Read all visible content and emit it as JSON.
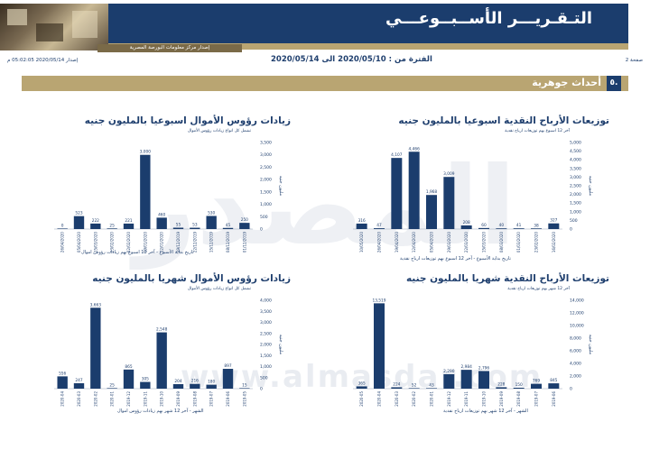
{
  "header": {
    "title": "التـقـريـــر الأســبــوعـــي",
    "subtitle": "إصدار مركز معلومات البورصة المصرية"
  },
  "meta": {
    "page": "صفحة 2",
    "period": "الفترة من : 2020/05/10 الى 2020/05/14",
    "issued": "إصدار 2020/05/14 05:02:05 م"
  },
  "section": {
    "number": "٥.",
    "title": "أحداث جوهرية"
  },
  "watermark": {
    "big": "المصدر",
    "url": "www.almasdar.com"
  },
  "colors": {
    "navy": "#1b3d6d",
    "gold": "#b9a572",
    "bar": "#1b3d6d"
  },
  "chart_data": [
    {
      "type": "bar",
      "title": "توزيعات الأرباح النقدية اسبوعيا بالمليون جنيه",
      "subtitle": "آخر 12 اسبوع بهم توزيعات ارباح نقدية",
      "xlabel": "تاريخ بداية الأسبوع - آخر 12 اسبوع بهم توزيعات ارباح نقدية",
      "ylabel": "مليون جنيه",
      "ylim": [
        0,
        5000
      ],
      "yticks": [
        0,
        500,
        1000,
        1500,
        2000,
        2500,
        3000,
        3500,
        4000,
        4500,
        5000
      ],
      "categories": [
        "10/05/2020",
        "26/04/2020",
        "19/04/2020",
        "12/04/2020",
        "05/04/2020",
        "29/03/2020",
        "22/03/2020",
        "15/03/2020",
        "08/03/2020",
        "01/03/2020",
        "23/02/2020",
        "16/02/2020"
      ],
      "values": [
        316,
        47,
        4107,
        4466,
        1968,
        3009,
        208,
        60,
        40,
        41,
        38,
        327
      ],
      "grid": false,
      "legend": "none"
    },
    {
      "type": "bar",
      "title": "زيادات رؤوس الأموال اسبوعيا بالمليون جنيه",
      "subtitle": "تشمل كل انواع زيادات رؤوس الأموال",
      "xlabel": "تاريخ بداية الأسبوع - آخر 12 اسبوع بهم زيادات رؤوس اموال",
      "ylabel": "مليون جنيه",
      "ylim": [
        0,
        3500
      ],
      "yticks": [
        0,
        500,
        1000,
        1500,
        2000,
        2500,
        3000,
        3500
      ],
      "categories": [
        "26/04/2020",
        "05/04/2020",
        "15/03/2020",
        "23/02/2020",
        "02/02/2020",
        "19/01/2020",
        "12/01/2020",
        "29/12/2019",
        "22/12/2019",
        "15/12/2019",
        "08/12/2019",
        "01/12/2019"
      ],
      "values": [
        0,
        523,
        222,
        25,
        221,
        3000,
        460,
        55,
        53,
        530,
        45,
        250
      ],
      "grid": false,
      "legend": "none"
    },
    {
      "type": "bar",
      "title": "توزيعات الأرباح النقدية شهريا بالمليون جنيه",
      "subtitle": "آخر 12 شهر بهم توزيعات ارباح نقدية",
      "xlabel": "الشهر - آخر 12 شهر بهم توزيعات ارباح نقدية",
      "ylabel": "مليون جنيه",
      "ylim": [
        0,
        14000
      ],
      "yticks": [
        0,
        2000,
        4000,
        6000,
        8000,
        10000,
        12000,
        14000
      ],
      "categories": [
        "2020-05",
        "2020-04",
        "2020-03",
        "2020-02",
        "2020-01",
        "2019-12",
        "2019-11",
        "2019-10",
        "2019-09",
        "2019-08",
        "2019-07",
        "2019-06"
      ],
      "values": [
        365,
        13519,
        224,
        52,
        43,
        2290,
        2984,
        2796,
        228,
        150,
        769,
        845
      ],
      "grid": false,
      "legend": "none"
    },
    {
      "type": "bar",
      "title": "زيادات رؤوس الأموال شهريا بالمليون جنيه",
      "subtitle": "تشمل كل انواع زيادات رؤوس الأموال",
      "xlabel": "الشهر - آخر 12 شهر بهم زيادات رؤوس اموال",
      "ylabel": "مليون جنيه",
      "ylim": [
        0,
        4000
      ],
      "yticks": [
        0,
        500,
        1000,
        1500,
        2000,
        2500,
        3000,
        3500,
        4000
      ],
      "categories": [
        "2020-04",
        "2020-03",
        "2020-02",
        "2020-01",
        "2019-12",
        "2019-11",
        "2019-10",
        "2019-09",
        "2019-08",
        "2019-07",
        "2019-06",
        "2019-05"
      ],
      "values": [
        556,
        247,
        3663,
        25,
        865,
        305,
        2548,
        204,
        216,
        180,
        897,
        15
      ],
      "grid": false,
      "legend": "none"
    }
  ]
}
